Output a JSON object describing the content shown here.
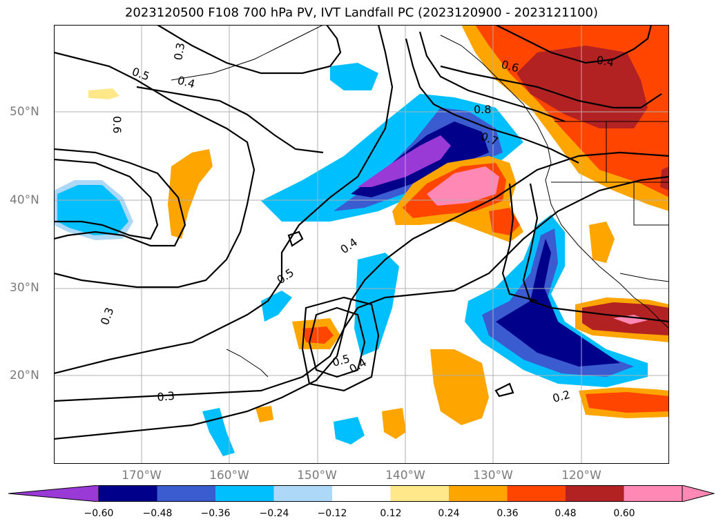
{
  "title": "2023120500 F108 700 hPa PV, IVT Landfall PC (2023120900 - 2023121100)",
  "map": {
    "lat_labels": [
      "50°N",
      "40°N",
      "30°N",
      "20°N"
    ],
    "lon_labels": [
      "170°W",
      "160°W",
      "150°W",
      "140°W",
      "130°W",
      "120°W"
    ],
    "contour_labels": [
      "0.3",
      "0.5",
      "0.4",
      "0.6",
      "0.8",
      "0.7",
      "0.6",
      "0.4",
      "0.4",
      "0.5",
      "0.3",
      "0.5",
      "0.4",
      "0.3",
      "0.2"
    ]
  },
  "colorbar": {
    "tick_labels": [
      "−0.60",
      "−0.48",
      "−0.36",
      "−0.24",
      "−0.12",
      "0.12",
      "0.24",
      "0.36",
      "0.48",
      "0.60"
    ],
    "colors": [
      "#9a3ad6",
      "#00008b",
      "#3b5bd0",
      "#00bfff",
      "#add8f7",
      "#ffffff",
      "#ffe88a",
      "#ffa500",
      "#ff4500",
      "#b22222",
      "#ff88b4",
      "#ff88b4"
    ]
  }
}
